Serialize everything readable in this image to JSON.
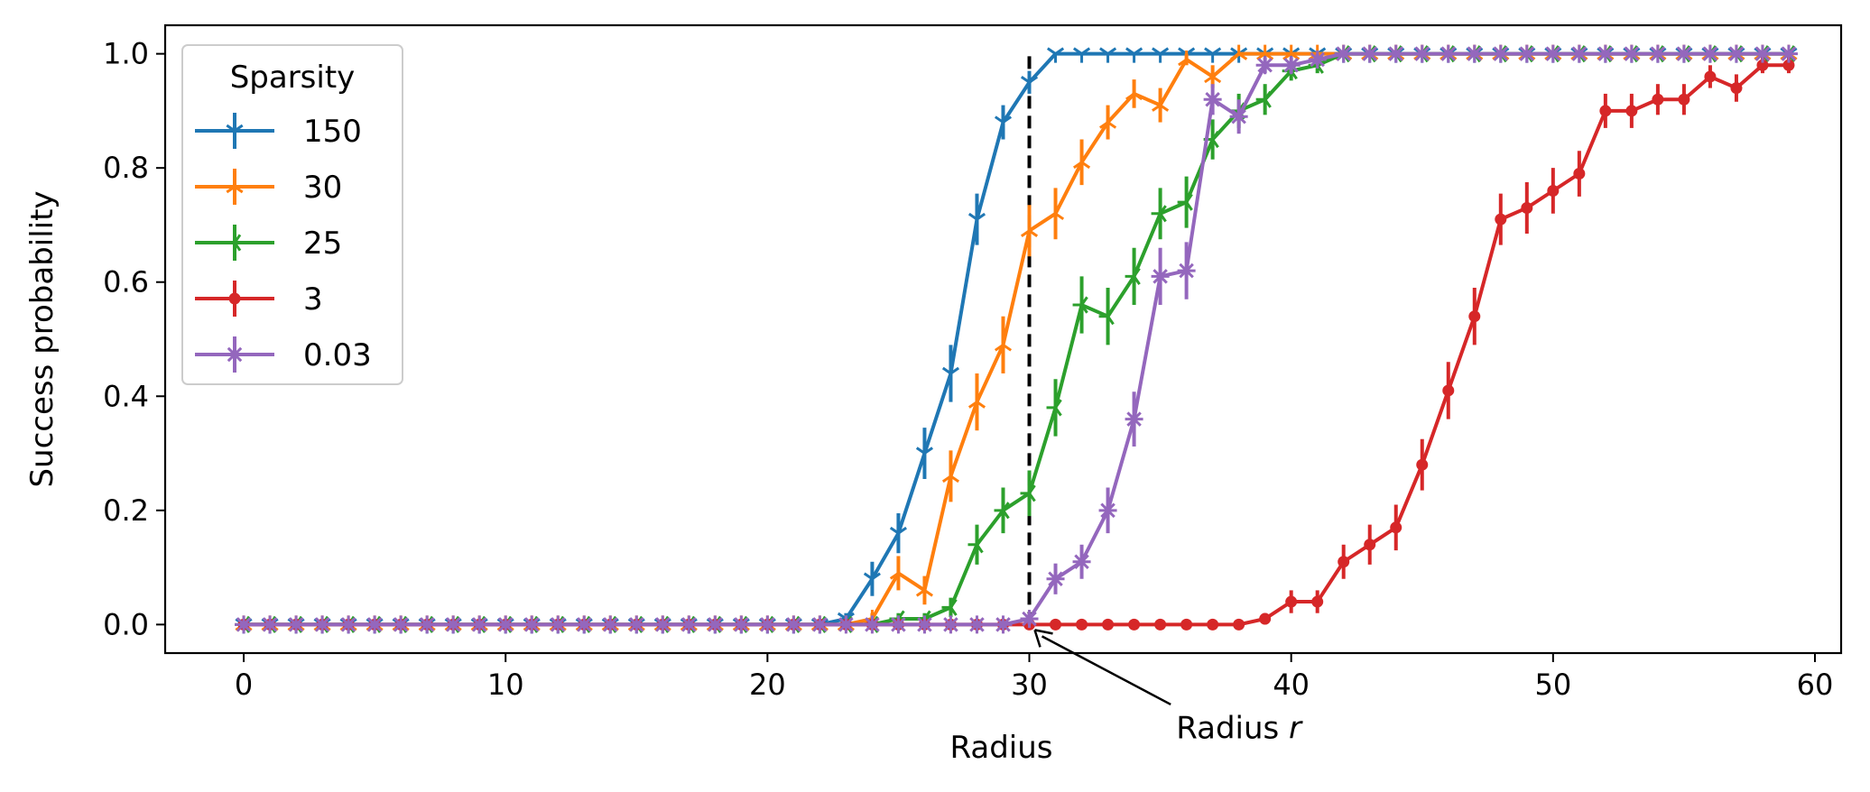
{
  "chart_data": {
    "type": "line",
    "xlabel": "Radius",
    "ylabel": "Success probability",
    "xlim": [
      -3,
      61
    ],
    "ylim": [
      -0.05,
      1.05
    ],
    "xticks": [
      0,
      10,
      20,
      30,
      40,
      50,
      60
    ],
    "yticks": [
      0.0,
      0.2,
      0.4,
      0.6,
      0.8,
      1.0
    ],
    "xtick_labels": [
      "0",
      "10",
      "20",
      "30",
      "40",
      "50",
      "60"
    ],
    "ytick_labels": [
      "0.0",
      "0.2",
      "0.4",
      "0.6",
      "0.8",
      "1.0"
    ],
    "grid": false,
    "legend": {
      "title": "Sparsity",
      "placement": "upper-left"
    },
    "x": [
      0,
      1,
      2,
      3,
      4,
      5,
      6,
      7,
      8,
      9,
      10,
      11,
      12,
      13,
      14,
      15,
      16,
      17,
      18,
      19,
      20,
      21,
      22,
      23,
      24,
      25,
      26,
      27,
      28,
      29,
      30,
      31,
      32,
      33,
      34,
      35,
      36,
      37,
      38,
      39,
      40,
      41,
      42,
      43,
      44,
      45,
      46,
      47,
      48,
      49,
      50,
      51,
      52,
      53,
      54,
      55,
      56,
      57,
      58,
      59
    ],
    "series": [
      {
        "name": "150",
        "color": "#1f77b4",
        "marker": "tri-down",
        "values": [
          0,
          0,
          0,
          0,
          0,
          0,
          0,
          0,
          0,
          0,
          0,
          0,
          0,
          0,
          0,
          0,
          0,
          0,
          0,
          0,
          0,
          0,
          0,
          0.01,
          0.08,
          0.16,
          0.3,
          0.44,
          0.71,
          0.88,
          0.95,
          1,
          1,
          1,
          1,
          1,
          1,
          1,
          1,
          1,
          1,
          1,
          1,
          1,
          1,
          1,
          1,
          1,
          1,
          1,
          1,
          1,
          1,
          1,
          1,
          1,
          1,
          1,
          1,
          1
        ],
        "errors": [
          0,
          0,
          0,
          0,
          0,
          0,
          0,
          0,
          0,
          0,
          0,
          0,
          0,
          0,
          0,
          0,
          0,
          0,
          0,
          0,
          0,
          0,
          0,
          0.01,
          0.03,
          0.035,
          0.045,
          0.05,
          0.045,
          0.03,
          0.02,
          0,
          0,
          0,
          0,
          0,
          0,
          0,
          0,
          0,
          0,
          0,
          0,
          0,
          0,
          0,
          0,
          0,
          0,
          0,
          0,
          0,
          0,
          0,
          0,
          0,
          0,
          0,
          0,
          0
        ]
      },
      {
        "name": "30",
        "color": "#ff7f0e",
        "marker": "tri-up",
        "values": [
          0,
          0,
          0,
          0,
          0,
          0,
          0,
          0,
          0,
          0,
          0,
          0,
          0,
          0,
          0,
          0,
          0,
          0,
          0,
          0,
          0,
          0,
          0,
          0,
          0.01,
          0.09,
          0.06,
          0.26,
          0.39,
          0.49,
          0.69,
          0.72,
          0.81,
          0.88,
          0.93,
          0.91,
          0.99,
          0.96,
          1,
          1,
          1,
          1,
          1,
          1,
          1,
          1,
          1,
          1,
          1,
          1,
          1,
          1,
          1,
          1,
          1,
          1,
          1,
          1,
          1,
          1
        ],
        "errors": [
          0,
          0,
          0,
          0,
          0,
          0,
          0,
          0,
          0,
          0,
          0,
          0,
          0,
          0,
          0,
          0,
          0,
          0,
          0,
          0,
          0,
          0,
          0,
          0,
          0.01,
          0.03,
          0.025,
          0.045,
          0.05,
          0.05,
          0.045,
          0.045,
          0.04,
          0.03,
          0.025,
          0.03,
          0.01,
          0.02,
          0,
          0,
          0,
          0,
          0,
          0,
          0,
          0,
          0,
          0,
          0,
          0,
          0,
          0,
          0,
          0,
          0,
          0,
          0,
          0,
          0,
          0
        ]
      },
      {
        "name": "25",
        "color": "#2ca02c",
        "marker": "tri-left",
        "values": [
          0,
          0,
          0,
          0,
          0,
          0,
          0,
          0,
          0,
          0,
          0,
          0,
          0,
          0,
          0,
          0,
          0,
          0,
          0,
          0,
          0,
          0,
          0,
          0,
          0,
          0.01,
          0.01,
          0.03,
          0.14,
          0.2,
          0.23,
          0.38,
          0.56,
          0.54,
          0.61,
          0.72,
          0.74,
          0.85,
          0.9,
          0.92,
          0.97,
          0.98,
          1,
          1,
          1,
          1,
          1,
          1,
          1,
          1,
          1,
          1,
          1,
          1,
          1,
          1,
          1,
          1,
          1,
          1
        ],
        "errors": [
          0,
          0,
          0,
          0,
          0,
          0,
          0,
          0,
          0,
          0,
          0,
          0,
          0,
          0,
          0,
          0,
          0,
          0,
          0,
          0,
          0,
          0,
          0,
          0,
          0,
          0.01,
          0.01,
          0.017,
          0.035,
          0.04,
          0.04,
          0.05,
          0.05,
          0.05,
          0.05,
          0.045,
          0.045,
          0.035,
          0.03,
          0.027,
          0.017,
          0.014,
          0,
          0,
          0,
          0,
          0,
          0,
          0,
          0,
          0,
          0,
          0,
          0,
          0,
          0,
          0,
          0,
          0,
          0
        ]
      },
      {
        "name": "3",
        "color": "#d62728",
        "marker": "dot",
        "values": [
          0,
          0,
          0,
          0,
          0,
          0,
          0,
          0,
          0,
          0,
          0,
          0,
          0,
          0,
          0,
          0,
          0,
          0,
          0,
          0,
          0,
          0,
          0,
          0,
          0,
          0,
          0,
          0,
          0,
          0,
          0,
          0,
          0,
          0,
          0,
          0,
          0,
          0,
          0,
          0.01,
          0.04,
          0.04,
          0.11,
          0.14,
          0.17,
          0.28,
          0.41,
          0.54,
          0.71,
          0.73,
          0.76,
          0.79,
          0.9,
          0.9,
          0.92,
          0.92,
          0.96,
          0.94,
          0.98,
          0.98
        ],
        "errors": [
          0,
          0,
          0,
          0,
          0,
          0,
          0,
          0,
          0,
          0,
          0,
          0,
          0,
          0,
          0,
          0,
          0,
          0,
          0,
          0,
          0,
          0,
          0,
          0,
          0,
          0,
          0,
          0,
          0,
          0,
          0,
          0,
          0,
          0,
          0,
          0,
          0,
          0,
          0,
          0.01,
          0.02,
          0.02,
          0.03,
          0.035,
          0.04,
          0.045,
          0.05,
          0.05,
          0.045,
          0.045,
          0.04,
          0.04,
          0.03,
          0.03,
          0.027,
          0.027,
          0.02,
          0.024,
          0.014,
          0.014
        ]
      },
      {
        "name": "0.03",
        "color": "#9467bd",
        "marker": "star",
        "values": [
          0,
          0,
          0,
          0,
          0,
          0,
          0,
          0,
          0,
          0,
          0,
          0,
          0,
          0,
          0,
          0,
          0,
          0,
          0,
          0,
          0,
          0,
          0,
          0,
          0,
          0,
          0,
          0,
          0,
          0,
          0.01,
          0.08,
          0.11,
          0.2,
          0.36,
          0.61,
          0.62,
          0.92,
          0.89,
          0.98,
          0.98,
          0.99,
          1,
          1,
          1,
          1,
          1,
          1,
          1,
          1,
          1,
          1,
          1,
          1,
          1,
          1,
          1,
          1,
          1,
          1
        ],
        "errors": [
          0,
          0,
          0,
          0,
          0,
          0,
          0,
          0,
          0,
          0,
          0,
          0,
          0,
          0,
          0,
          0,
          0,
          0,
          0,
          0,
          0,
          0,
          0,
          0,
          0,
          0,
          0,
          0,
          0,
          0,
          0.01,
          0.027,
          0.03,
          0.04,
          0.048,
          0.05,
          0.05,
          0.027,
          0.03,
          0.014,
          0.014,
          0.01,
          0,
          0,
          0,
          0,
          0,
          0,
          0,
          0,
          0,
          0,
          0,
          0,
          0,
          0,
          0,
          0,
          0,
          0
        ]
      }
    ],
    "reference_line": {
      "x": 30,
      "y_from": 0,
      "y_to": 1,
      "style": "dashed",
      "color": "#000000"
    },
    "annotation": {
      "text_prefix": "Radius ",
      "text_var": "r",
      "point": [
        30,
        0
      ],
      "text_at": [
        38,
        -0.18
      ]
    }
  }
}
